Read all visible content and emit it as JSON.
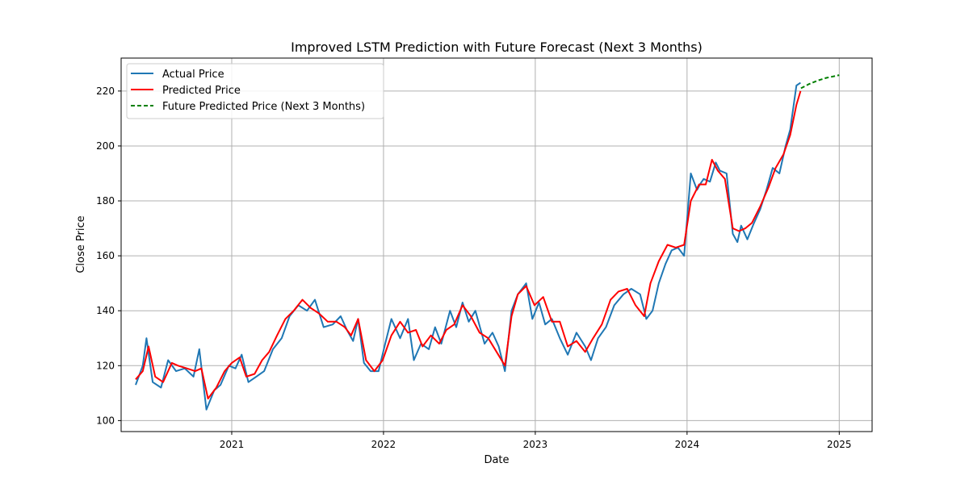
{
  "chart_data": {
    "type": "line",
    "title": "Improved LSTM Prediction with Future Forecast (Next 3 Months)",
    "xlabel": "Date",
    "ylabel": "Close Price",
    "grid": true,
    "legend_position": "top-left",
    "xlim": [
      "2020-04-10",
      "2025-03-21"
    ],
    "ylim": [
      96,
      232
    ],
    "x_ticks": [
      "2021-01-01",
      "2022-01-01",
      "2023-01-01",
      "2024-01-01",
      "2025-01-01"
    ],
    "x_tick_labels": [
      "2021",
      "2022",
      "2023",
      "2024",
      "2025"
    ],
    "y_ticks": [
      100,
      120,
      140,
      160,
      180,
      200,
      220
    ],
    "y_tick_labels": [
      "100",
      "120",
      "140",
      "160",
      "180",
      "200",
      "220"
    ],
    "series": [
      {
        "name": "Actual Price",
        "color": "#1f77b4",
        "style": "solid",
        "x": [
          "2020-05-15",
          "2020-06-01",
          "2020-06-10",
          "2020-06-25",
          "2020-07-15",
          "2020-08-01",
          "2020-08-20",
          "2020-09-10",
          "2020-10-01",
          "2020-10-15",
          "2020-11-01",
          "2020-11-20",
          "2020-12-05",
          "2020-12-25",
          "2021-01-10",
          "2021-01-25",
          "2021-02-10",
          "2021-03-01",
          "2021-03-20",
          "2021-04-10",
          "2021-05-01",
          "2021-05-20",
          "2021-06-10",
          "2021-07-01",
          "2021-07-20",
          "2021-08-10",
          "2021-09-01",
          "2021-09-20",
          "2021-10-05",
          "2021-10-20",
          "2021-11-01",
          "2021-11-15",
          "2021-12-01",
          "2021-12-20",
          "2022-01-05",
          "2022-01-20",
          "2022-02-10",
          "2022-03-01",
          "2022-03-15",
          "2022-04-01",
          "2022-04-20",
          "2022-05-05",
          "2022-05-20",
          "2022-06-10",
          "2022-06-25",
          "2022-07-10",
          "2022-07-25",
          "2022-08-10",
          "2022-09-01",
          "2022-09-20",
          "2022-10-05",
          "2022-10-20",
          "2022-11-05",
          "2022-11-20",
          "2022-12-10",
          "2022-12-25",
          "2023-01-10",
          "2023-01-25",
          "2023-02-10",
          "2023-03-01",
          "2023-03-20",
          "2023-04-10",
          "2023-05-01",
          "2023-05-15",
          "2023-06-01",
          "2023-06-20",
          "2023-07-10",
          "2023-08-01",
          "2023-08-20",
          "2023-09-10",
          "2023-09-25",
          "2023-10-10",
          "2023-10-25",
          "2023-11-10",
          "2023-11-25",
          "2023-12-10",
          "2023-12-25",
          "2024-01-10",
          "2024-01-25",
          "2024-02-01",
          "2024-02-10",
          "2024-02-25",
          "2024-03-10",
          "2024-03-20",
          "2024-04-05",
          "2024-04-20",
          "2024-05-01",
          "2024-05-10",
          "2024-05-25",
          "2024-06-10",
          "2024-06-25",
          "2024-07-10",
          "2024-07-25",
          "2024-08-10",
          "2024-08-25",
          "2024-09-05",
          "2024-09-20",
          "2024-09-30"
        ],
        "y": [
          113,
          120,
          130,
          114,
          112,
          122,
          118,
          119,
          116,
          126,
          104,
          111,
          113,
          120,
          119,
          124,
          114,
          116,
          118,
          126,
          130,
          138,
          142,
          140,
          144,
          134,
          135,
          138,
          133,
          129,
          137,
          121,
          118,
          118,
          128,
          137,
          130,
          137,
          122,
          128,
          126,
          134,
          128,
          140,
          134,
          143,
          136,
          140,
          128,
          132,
          127,
          118,
          140,
          146,
          150,
          137,
          143,
          135,
          137,
          130,
          124,
          132,
          127,
          122,
          130,
          134,
          142,
          146,
          148,
          146,
          137,
          140,
          150,
          157,
          162,
          163,
          160,
          190,
          184,
          186,
          188,
          187,
          194,
          191,
          190,
          168,
          165,
          171,
          166,
          172,
          177,
          184,
          192,
          190,
          200,
          206,
          222,
          223
        ]
      },
      {
        "name": "Predicted Price",
        "color": "#ff0000",
        "style": "solid",
        "x": [
          "2020-05-15",
          "2020-06-01",
          "2020-06-15",
          "2020-07-01",
          "2020-07-20",
          "2020-08-10",
          "2020-08-25",
          "2020-09-15",
          "2020-10-05",
          "2020-10-20",
          "2020-11-05",
          "2020-11-25",
          "2020-12-15",
          "2021-01-01",
          "2021-01-20",
          "2021-02-05",
          "2021-02-25",
          "2021-03-15",
          "2021-04-01",
          "2021-04-20",
          "2021-05-10",
          "2021-05-30",
          "2021-06-20",
          "2021-07-10",
          "2021-07-30",
          "2021-08-20",
          "2021-09-10",
          "2021-09-30",
          "2021-10-15",
          "2021-11-01",
          "2021-11-20",
          "2021-12-10",
          "2021-12-30",
          "2022-01-20",
          "2022-02-10",
          "2022-03-01",
          "2022-03-20",
          "2022-04-05",
          "2022-04-25",
          "2022-05-15",
          "2022-06-01",
          "2022-06-20",
          "2022-07-10",
          "2022-07-30",
          "2022-08-20",
          "2022-09-10",
          "2022-09-30",
          "2022-10-20",
          "2022-11-05",
          "2022-11-20",
          "2022-12-10",
          "2022-12-30",
          "2023-01-20",
          "2023-02-10",
          "2023-03-01",
          "2023-03-20",
          "2023-04-10",
          "2023-05-01",
          "2023-05-20",
          "2023-06-10",
          "2023-07-01",
          "2023-07-20",
          "2023-08-10",
          "2023-08-30",
          "2023-09-20",
          "2023-10-05",
          "2023-10-25",
          "2023-11-15",
          "2023-12-05",
          "2023-12-25",
          "2024-01-10",
          "2024-01-30",
          "2024-02-15",
          "2024-03-01",
          "2024-03-15",
          "2024-04-01",
          "2024-04-20",
          "2024-05-05",
          "2024-05-20",
          "2024-06-05",
          "2024-06-25",
          "2024-07-15",
          "2024-08-01",
          "2024-08-20",
          "2024-09-05",
          "2024-09-20",
          "2024-09-30"
        ],
        "y": [
          115,
          118,
          127,
          116,
          114,
          121,
          120,
          119,
          118,
          119,
          108,
          112,
          118,
          121,
          123,
          116,
          117,
          122,
          125,
          131,
          137,
          140,
          144,
          141,
          139,
          136,
          136,
          134,
          131,
          137,
          122,
          118,
          122,
          131,
          136,
          132,
          133,
          127,
          131,
          128,
          133,
          135,
          142,
          138,
          132,
          130,
          125,
          120,
          138,
          146,
          149,
          142,
          145,
          136,
          136,
          127,
          129,
          125,
          130,
          135,
          144,
          147,
          148,
          142,
          138,
          150,
          158,
          164,
          163,
          164,
          180,
          186,
          186,
          195,
          191,
          188,
          170,
          169,
          170,
          172,
          178,
          185,
          192,
          197,
          204,
          215,
          220
        ]
      },
      {
        "name": "Future Predicted Price (Next 3 Months)",
        "color": "#008000",
        "style": "dashed",
        "x": [
          "2024-10-01",
          "2024-10-20",
          "2024-11-10",
          "2024-12-01",
          "2024-12-20",
          "2025-01-01"
        ],
        "y": [
          221,
          222.5,
          223.8,
          224.8,
          225.4,
          225.8
        ]
      }
    ]
  }
}
